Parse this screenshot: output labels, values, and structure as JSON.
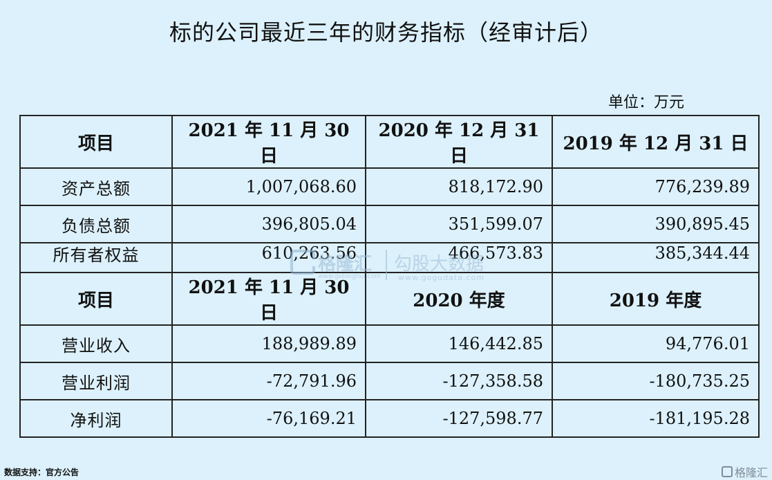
{
  "title": "标的公司最近三年的财务指标（经审计后）",
  "unit": "单位：万元",
  "balance": {
    "headers": [
      "项目",
      "2021 年 11 月 30 日",
      "2020 年 12 月 31 日",
      "2019 年 12 月 31 日"
    ],
    "rows": [
      {
        "label": "资产总额",
        "values": [
          "1,007,068.60",
          "818,172.90",
          "776,239.89"
        ]
      },
      {
        "label": "负债总额",
        "values": [
          "396,805.04",
          "351,599.07",
          "390,895.45"
        ]
      },
      {
        "label": "所有者权益",
        "values": [
          "610,263.56",
          "466,573.83",
          "385,344.44"
        ]
      }
    ]
  },
  "income": {
    "headers": [
      "项目",
      "2021 年 11 月 30 日",
      "2020 年度",
      "2019 年度"
    ],
    "rows": [
      {
        "label": "营业收入",
        "values": [
          "188,989.89",
          "146,442.85",
          "94,776.01"
        ]
      },
      {
        "label": "营业利润",
        "values": [
          "-72,791.96",
          "-127,358.58",
          "-180,735.25"
        ]
      },
      {
        "label": "净利润",
        "values": [
          "-76,169.21",
          "-127,598.77",
          "-181,195.28"
        ]
      }
    ]
  },
  "watermark": {
    "brand": "格隆汇",
    "brand_domain": "www.gelonghui.com",
    "name": "勾股大数据",
    "name_domain": "www.gogudata.com"
  },
  "source": "数据支持：官方公告",
  "corner_brand": "格隆汇"
}
